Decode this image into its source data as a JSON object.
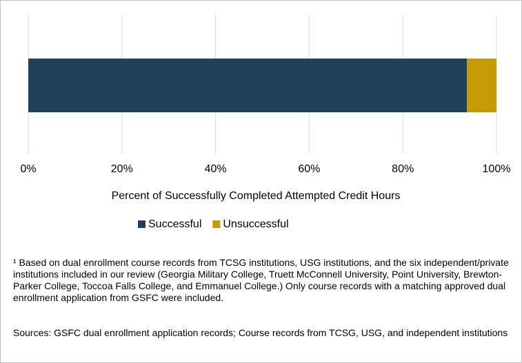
{
  "chart_data": {
    "type": "stacked_hbar",
    "series": [
      {
        "name": "Successful",
        "color": "#1f4159",
        "values": [
          93.7
        ]
      },
      {
        "name": "Unsuccessful",
        "color": "#c49a06",
        "values": [
          6.3
        ]
      }
    ],
    "xlim": [
      0,
      100
    ],
    "xticks": [
      {
        "value": 0,
        "label": "0%"
      },
      {
        "value": 20,
        "label": "20%"
      },
      {
        "value": 40,
        "label": "40%"
      },
      {
        "value": 60,
        "label": "60%"
      },
      {
        "value": 80,
        "label": "80%"
      },
      {
        "value": 100,
        "label": "100%"
      }
    ],
    "x_label": "Percent of Successfully Completed Attempted Credit Hours",
    "grid": true,
    "legend": "bottom",
    "footnote": "¹ Based on dual enrollment course records from TCSG institutions, USG institutions, and the six independent/private institutions included in our review (Georgia Military College, Truett McConnell University, Point University, Brewton-Parker College, Toccoa Falls College, and Emmanuel College.) Only course records with a matching approved dual enrollment application from GSFC were included.",
    "source": "Sources: GSFC dual enrollment application records; Course records from TCSG, USG, and independent institutions"
  }
}
